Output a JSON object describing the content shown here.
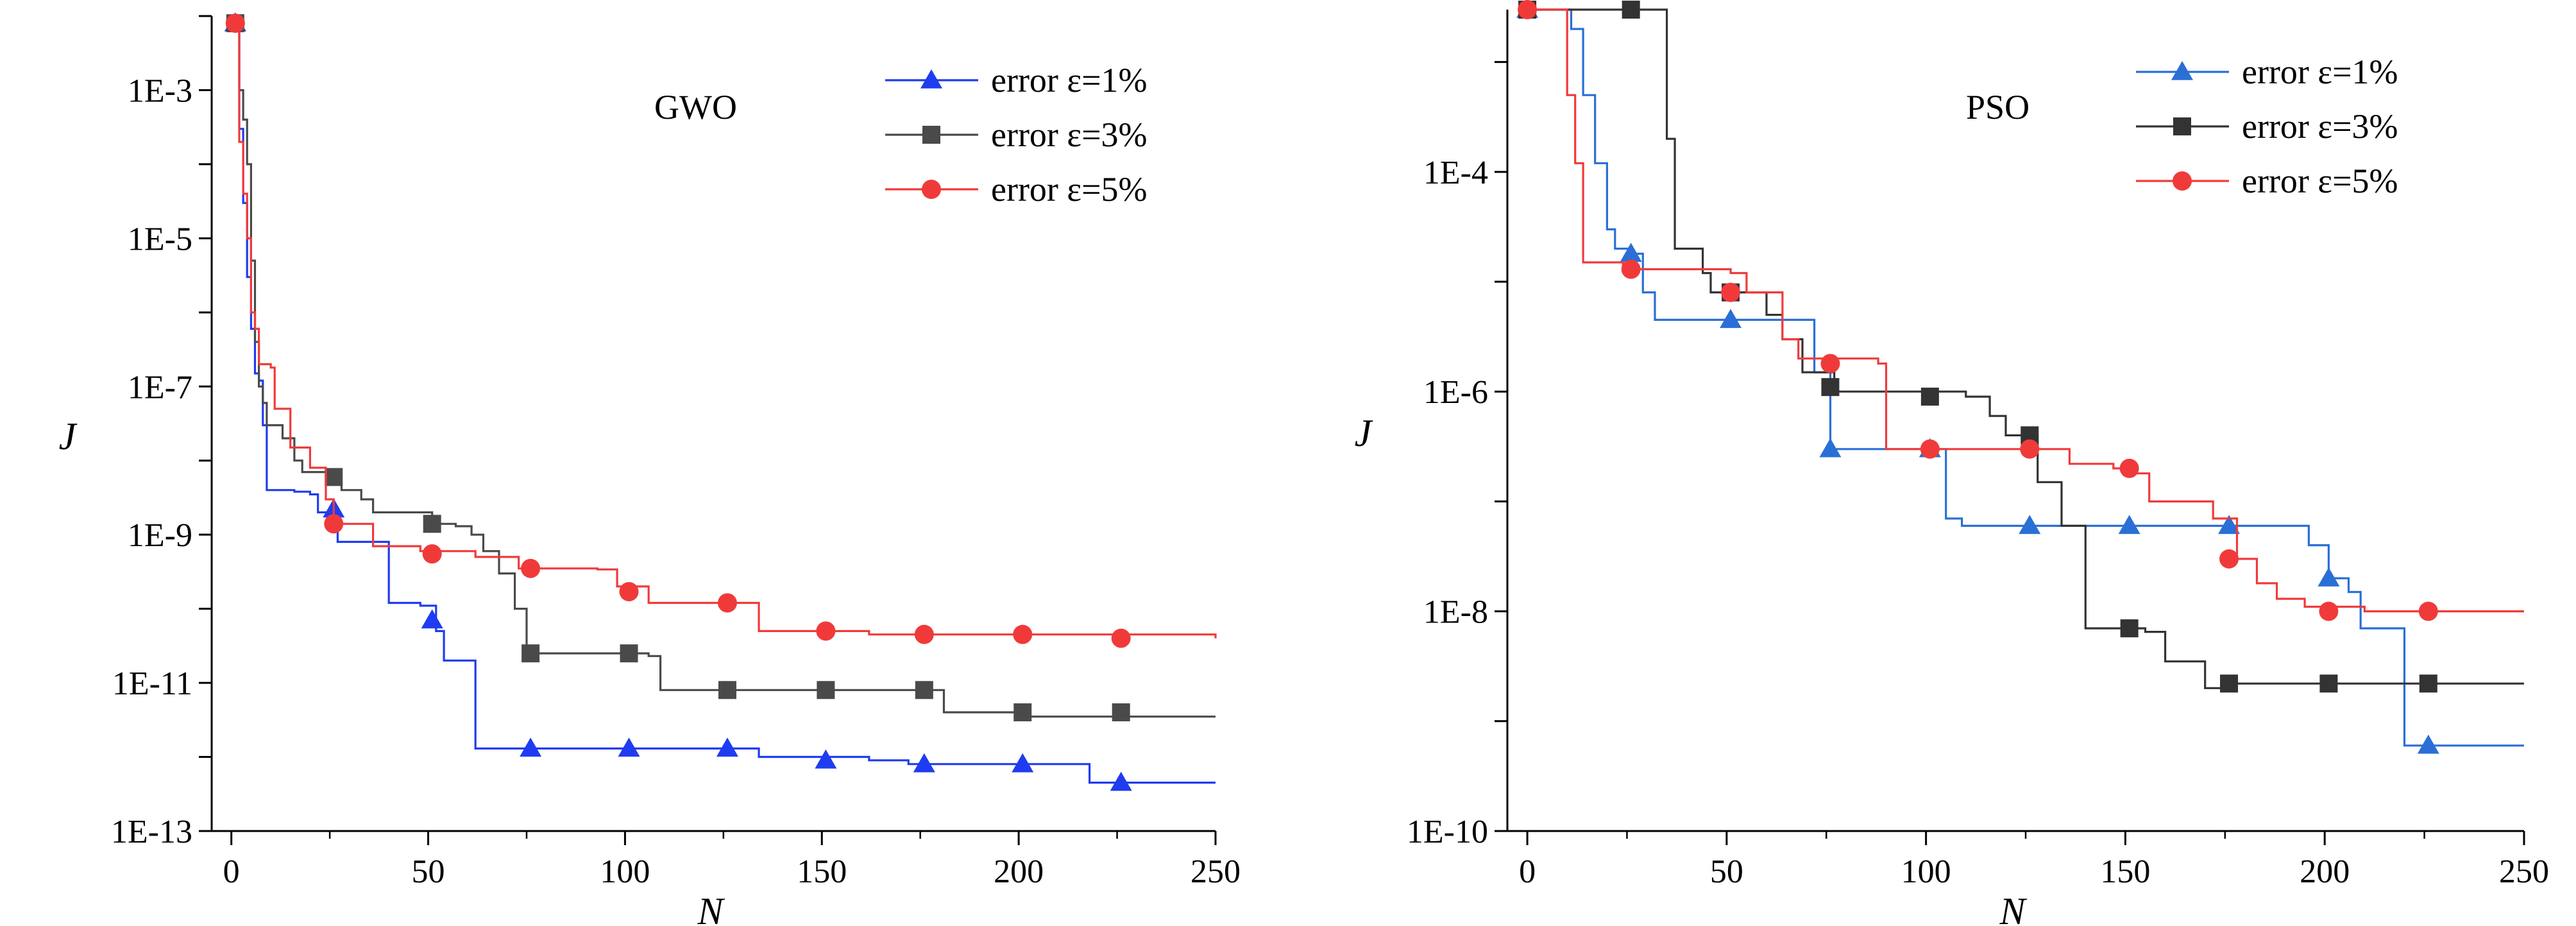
{
  "chart_data": [
    {
      "type": "line",
      "yscale": "log",
      "annotation": "GWO",
      "xlabel": "N",
      "ylabel": "J",
      "xlim": [
        -5,
        250
      ],
      "ylim": [
        1e-13,
        0.01
      ],
      "xticks": [
        0,
        50,
        100,
        150,
        200,
        250
      ],
      "xtick_labels": [
        "0",
        "50",
        "100",
        "150",
        "200",
        "250"
      ],
      "yticks": [
        1e-13,
        1e-11,
        1e-09,
        1e-07,
        1e-05,
        0.001
      ],
      "ytick_labels": [
        "1E-13",
        "1E-11",
        "1E-9",
        "1E-7",
        "1E-5",
        "1E-3"
      ],
      "legend_position": "top-right",
      "series": [
        {
          "name": "error ε=1%",
          "color": "#1f3cf0",
          "marker": "triangle",
          "steps": [
            [
              1,
              0.008
            ],
            [
              2,
              0.0003
            ],
            [
              3,
              3e-05
            ],
            [
              4,
              3e-06
            ],
            [
              5,
              6e-07
            ],
            [
              6,
              1.5e-07
            ],
            [
              7,
              1.2e-07
            ],
            [
              8,
              3e-08
            ],
            [
              9,
              4e-09
            ],
            [
              16,
              3.8e-09
            ],
            [
              20,
              3.5e-09
            ],
            [
              22,
              2e-09
            ],
            [
              25,
              1.5e-09
            ],
            [
              27,
              8e-10
            ],
            [
              40,
              1.2e-10
            ],
            [
              48,
              1.1e-10
            ],
            [
              52,
              5e-11
            ],
            [
              54,
              2e-11
            ],
            [
              62,
              1.3e-12
            ],
            [
              131,
              1.3e-12
            ],
            [
              134,
              1e-12
            ],
            [
              162,
              9e-13
            ],
            [
              172,
              8e-13
            ],
            [
              218,
              4.5e-13
            ],
            [
              250,
              4.5e-13
            ]
          ],
          "markers": [
            [
              1,
              0.008
            ],
            [
              26,
              2.2e-09
            ],
            [
              51,
              7e-11
            ],
            [
              76,
              1.3e-12
            ],
            [
              101,
              1.3e-12
            ],
            [
              126,
              1.3e-12
            ],
            [
              151,
              9e-13
            ],
            [
              176,
              8e-13
            ],
            [
              201,
              8e-13
            ],
            [
              226,
              4.5e-13
            ]
          ]
        },
        {
          "name": "error ε=3%",
          "color": "#4a4a4a",
          "marker": "square",
          "steps": [
            [
              1,
              0.008
            ],
            [
              2,
              0.001
            ],
            [
              3,
              0.0004
            ],
            [
              4,
              0.0001
            ],
            [
              5,
              5e-06
            ],
            [
              6,
              4e-07
            ],
            [
              7,
              1e-07
            ],
            [
              8,
              6e-08
            ],
            [
              9,
              3e-08
            ],
            [
              13,
              2e-08
            ],
            [
              16,
              1e-08
            ],
            [
              18,
              7e-09
            ],
            [
              25,
              6e-09
            ],
            [
              28,
              4e-09
            ],
            [
              33,
              3e-09
            ],
            [
              36,
              2e-09
            ],
            [
              51,
              1.4e-09
            ],
            [
              57,
              1.3e-09
            ],
            [
              61,
              1e-09
            ],
            [
              64,
              6e-10
            ],
            [
              68,
              3e-10
            ],
            [
              72,
              1e-10
            ],
            [
              75,
              2.5e-11
            ],
            [
              106,
              2.3e-11
            ],
            [
              109,
              8e-12
            ],
            [
              177,
              8e-12
            ],
            [
              181,
              4e-12
            ],
            [
              199,
              4e-12
            ],
            [
              202,
              3.5e-12
            ],
            [
              250,
              3.5e-12
            ]
          ],
          "markers": [
            [
              1,
              0.008
            ],
            [
              26,
              6e-09
            ],
            [
              51,
              1.4e-09
            ],
            [
              76,
              2.5e-11
            ],
            [
              101,
              2.5e-11
            ],
            [
              126,
              8e-12
            ],
            [
              151,
              8e-12
            ],
            [
              176,
              8e-12
            ],
            [
              201,
              4e-12
            ],
            [
              226,
              4e-12
            ]
          ]
        },
        {
          "name": "error ε=5%",
          "color": "#f03a3a",
          "marker": "circle",
          "steps": [
            [
              1,
              0.008
            ],
            [
              2,
              0.0002
            ],
            [
              3,
              4e-05
            ],
            [
              4,
              1e-05
            ],
            [
              5,
              1e-06
            ],
            [
              6,
              6e-07
            ],
            [
              7,
              2e-07
            ],
            [
              10,
              1.8e-07
            ],
            [
              11,
              5e-08
            ],
            [
              15,
              1.5e-08
            ],
            [
              20,
              8e-09
            ],
            [
              24,
              3e-09
            ],
            [
              26,
              1.4e-09
            ],
            [
              36,
              7e-10
            ],
            [
              48,
              6e-10
            ],
            [
              62,
              5e-10
            ],
            [
              73,
              3.5e-10
            ],
            [
              93,
              3.4e-10
            ],
            [
              98,
              2e-10
            ],
            [
              106,
              1.2e-10
            ],
            [
              134,
              5e-11
            ],
            [
              162,
              4.5e-11
            ],
            [
              250,
              4e-11
            ]
          ],
          "markers": [
            [
              1,
              0.008
            ],
            [
              26,
              1.4e-09
            ],
            [
              51,
              5.5e-10
            ],
            [
              76,
              3.5e-10
            ],
            [
              101,
              1.7e-10
            ],
            [
              126,
              1.2e-10
            ],
            [
              151,
              5e-11
            ],
            [
              176,
              4.5e-11
            ],
            [
              201,
              4.5e-11
            ],
            [
              226,
              4e-11
            ]
          ]
        }
      ]
    },
    {
      "type": "line",
      "yscale": "log",
      "annotation": "PSO",
      "xlabel": "N",
      "ylabel": "J",
      "xlim": [
        -5,
        250
      ],
      "ylim": [
        1e-10,
        0.003
      ],
      "xticks": [
        0,
        50,
        100,
        150,
        200,
        250
      ],
      "xtick_labels": [
        "0",
        "50",
        "100",
        "150",
        "200",
        "250"
      ],
      "yticks": [
        1e-10,
        1e-08,
        1e-06,
        0.0001
      ],
      "ytick_labels": [
        "1E-10",
        "1E-8",
        "1E-6",
        "1E-4"
      ],
      "legend_position": "top-right",
      "series": [
        {
          "name": "error ε=1%",
          "color": "#2a6fd6",
          "marker": "triangle",
          "steps": [
            [
              0,
              0.003
            ],
            [
              9,
              0.003
            ],
            [
              11,
              0.002
            ],
            [
              14,
              0.0005
            ],
            [
              17,
              0.00012
            ],
            [
              20,
              3e-05
            ],
            [
              22,
              2e-05
            ],
            [
              26,
              1.8e-05
            ],
            [
              29,
              8e-06
            ],
            [
              32,
              4.5e-06
            ],
            [
              70,
              4.5e-06
            ],
            [
              72,
              1.5e-06
            ],
            [
              76,
              3e-07
            ],
            [
              101,
              3e-07
            ],
            [
              105,
              7e-08
            ],
            [
              109,
              6e-08
            ],
            [
              126,
              6e-08
            ],
            [
              151,
              6e-08
            ],
            [
              176,
              6e-08
            ],
            [
              196,
              4e-08
            ],
            [
              201,
              2e-08
            ],
            [
              206,
              1.5e-08
            ],
            [
              209,
              7e-09
            ],
            [
              218,
              7e-09
            ],
            [
              220,
              6e-10
            ],
            [
              250,
              6e-10
            ]
          ],
          "markers": [
            [
              0,
              0.003
            ],
            [
              26,
              1.8e-05
            ],
            [
              51,
              4.5e-06
            ],
            [
              76,
              3e-07
            ],
            [
              101,
              3e-07
            ],
            [
              126,
              6e-08
            ],
            [
              151,
              6e-08
            ],
            [
              176,
              6e-08
            ],
            [
              201,
              2e-08
            ],
            [
              226,
              6e-10
            ]
          ]
        },
        {
          "name": "error ε=3%",
          "color": "#333333",
          "marker": "square",
          "steps": [
            [
              0,
              0.003
            ],
            [
              31,
              0.003
            ],
            [
              35,
              0.0002
            ],
            [
              37,
              2e-05
            ],
            [
              44,
              1.2e-05
            ],
            [
              46,
              8e-06
            ],
            [
              58,
              8e-06
            ],
            [
              60,
              5e-06
            ],
            [
              64,
              3e-06
            ],
            [
              69,
              1.5e-06
            ],
            [
              77,
              1e-06
            ],
            [
              110,
              9e-07
            ],
            [
              116,
              6e-07
            ],
            [
              120,
              4e-07
            ],
            [
              128,
              1.5e-07
            ],
            [
              134,
              6e-08
            ],
            [
              140,
              7e-09
            ],
            [
              155,
              6.5e-09
            ],
            [
              160,
              3.5e-09
            ],
            [
              170,
              2e-09
            ],
            [
              175,
              2.2e-09
            ],
            [
              250,
              2.2e-09
            ]
          ],
          "markers": [
            [
              0,
              0.003
            ],
            [
              26,
              0.003
            ],
            [
              51,
              8e-06
            ],
            [
              76,
              1.1e-06
            ],
            [
              101,
              9e-07
            ],
            [
              126,
              4e-07
            ],
            [
              151,
              7e-09
            ],
            [
              176,
              2.2e-09
            ],
            [
              201,
              2.2e-09
            ],
            [
              226,
              2.2e-09
            ]
          ]
        },
        {
          "name": "error ε=5%",
          "color": "#f03a3a",
          "marker": "circle",
          "steps": [
            [
              0,
              0.003
            ],
            [
              9,
              0.003
            ],
            [
              10,
              0.0005
            ],
            [
              12,
              0.00012
            ],
            [
              14,
              1.5e-05
            ],
            [
              24,
              1.3e-05
            ],
            [
              51,
              1.2e-05
            ],
            [
              55,
              8e-06
            ],
            [
              64,
              3e-06
            ],
            [
              68,
              2e-06
            ],
            [
              88,
              1.8e-06
            ],
            [
              90,
              3e-07
            ],
            [
              100,
              3e-07
            ],
            [
              126,
              3e-07
            ],
            [
              136,
              2.2e-07
            ],
            [
              147,
              2e-07
            ],
            [
              151,
              1.8e-07
            ],
            [
              156,
              1e-07
            ],
            [
              172,
              7e-08
            ],
            [
              178,
              3e-08
            ],
            [
              183,
              1.8e-08
            ],
            [
              188,
              1.3e-08
            ],
            [
              195,
              1.1e-08
            ],
            [
              210,
              1e-08
            ],
            [
              250,
              1e-08
            ]
          ],
          "markers": [
            [
              0,
              0.003
            ],
            [
              26,
              1.3e-05
            ],
            [
              51,
              8e-06
            ],
            [
              76,
              1.8e-06
            ],
            [
              101,
              3e-07
            ],
            [
              126,
              3e-07
            ],
            [
              151,
              2e-07
            ],
            [
              176,
              3e-08
            ],
            [
              201,
              1e-08
            ],
            [
              226,
              1e-08
            ]
          ]
        }
      ]
    }
  ]
}
